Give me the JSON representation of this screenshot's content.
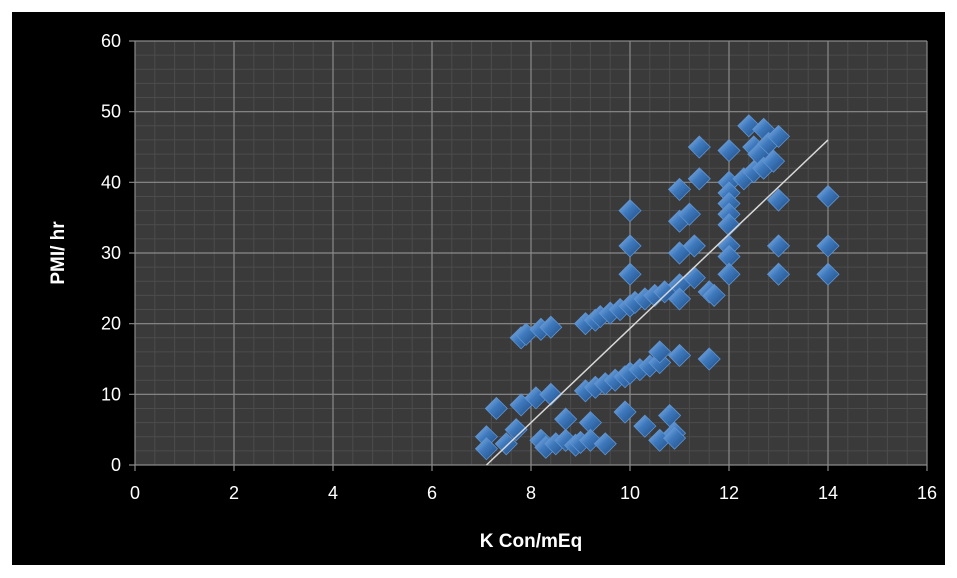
{
  "chart_data": {
    "type": "scatter",
    "title": "",
    "xlabel": "K Con/mEq",
    "ylabel": "PMI/ hr",
    "xlim": [
      0,
      16
    ],
    "ylim": [
      0,
      60
    ],
    "x_ticks": [
      0,
      2,
      4,
      6,
      8,
      10,
      12,
      14,
      16
    ],
    "y_ticks": [
      0,
      10,
      20,
      30,
      40,
      50,
      60
    ],
    "grid": true,
    "legend": "none",
    "marker": "diamond",
    "colors": {
      "background": "#000000",
      "plot_area": "#3a3a3a",
      "major_grid": "#8a8a8a",
      "minor_grid": "#4c4c4c",
      "point": "#3e79bd",
      "trendline": "#d8d8d8"
    },
    "trendline": {
      "type": "linear",
      "x": [
        7.1,
        14.0
      ],
      "y": [
        0.0,
        46.0
      ]
    },
    "points": [
      [
        7.1,
        4
      ],
      [
        7.1,
        2.3
      ],
      [
        7.3,
        8
      ],
      [
        7.5,
        3
      ],
      [
        7.7,
        5
      ],
      [
        7.8,
        8.5
      ],
      [
        7.8,
        18
      ],
      [
        7.9,
        18.5
      ],
      [
        8.1,
        9.5
      ],
      [
        8.2,
        19.2
      ],
      [
        8.2,
        3.5
      ],
      [
        8.3,
        2.5
      ],
      [
        8.4,
        10
      ],
      [
        8.4,
        19.5
      ],
      [
        8.5,
        3
      ],
      [
        8.7,
        6.5
      ],
      [
        8.7,
        3.5
      ],
      [
        8.9,
        2.8
      ],
      [
        9.0,
        3.2
      ],
      [
        9.1,
        20
      ],
      [
        9.1,
        10.5
      ],
      [
        9.2,
        6
      ],
      [
        9.2,
        3.5
      ],
      [
        9.3,
        20.5
      ],
      [
        9.3,
        11
      ],
      [
        9.4,
        21
      ],
      [
        9.5,
        11.5
      ],
      [
        9.5,
        3
      ],
      [
        9.6,
        21.5
      ],
      [
        9.7,
        12
      ],
      [
        9.8,
        22
      ],
      [
        9.9,
        12.5
      ],
      [
        9.9,
        7.5
      ],
      [
        10.0,
        22.5
      ],
      [
        10.0,
        13
      ],
      [
        10.0,
        36
      ],
      [
        10.0,
        31
      ],
      [
        10.0,
        27
      ],
      [
        10.1,
        23
      ],
      [
        10.2,
        13.5
      ],
      [
        10.3,
        23.5
      ],
      [
        10.3,
        5.5
      ],
      [
        10.4,
        14
      ],
      [
        10.5,
        24
      ],
      [
        10.6,
        14.5
      ],
      [
        10.6,
        3.5
      ],
      [
        10.6,
        16
      ],
      [
        10.7,
        24.5
      ],
      [
        10.8,
        7
      ],
      [
        10.9,
        4.5
      ],
      [
        10.9,
        3.8
      ],
      [
        11.0,
        39
      ],
      [
        11.0,
        34.5
      ],
      [
        11.0,
        30
      ],
      [
        11.0,
        25.5
      ],
      [
        11.0,
        23.5
      ],
      [
        11.0,
        15.5
      ],
      [
        11.2,
        35.5
      ],
      [
        11.3,
        31
      ],
      [
        11.3,
        26.5
      ],
      [
        11.4,
        45
      ],
      [
        11.4,
        40.5
      ],
      [
        11.6,
        24.5
      ],
      [
        11.6,
        15
      ],
      [
        11.7,
        24
      ],
      [
        12.0,
        44.5
      ],
      [
        12.0,
        40
      ],
      [
        12.0,
        38.5
      ],
      [
        12.0,
        37
      ],
      [
        12.0,
        35.5
      ],
      [
        12.0,
        34
      ],
      [
        12.0,
        31
      ],
      [
        12.0,
        29.5
      ],
      [
        12.0,
        27
      ],
      [
        12.3,
        40.5
      ],
      [
        12.4,
        48
      ],
      [
        12.5,
        45
      ],
      [
        12.5,
        41.5
      ],
      [
        12.6,
        44
      ],
      [
        12.7,
        47.5
      ],
      [
        12.7,
        42
      ],
      [
        12.8,
        45.5
      ],
      [
        12.9,
        43
      ],
      [
        13.0,
        46.5
      ],
      [
        13.0,
        37.5
      ],
      [
        13.0,
        31
      ],
      [
        13.0,
        27
      ],
      [
        14.0,
        38
      ],
      [
        14.0,
        31
      ],
      [
        14.0,
        27
      ]
    ]
  }
}
